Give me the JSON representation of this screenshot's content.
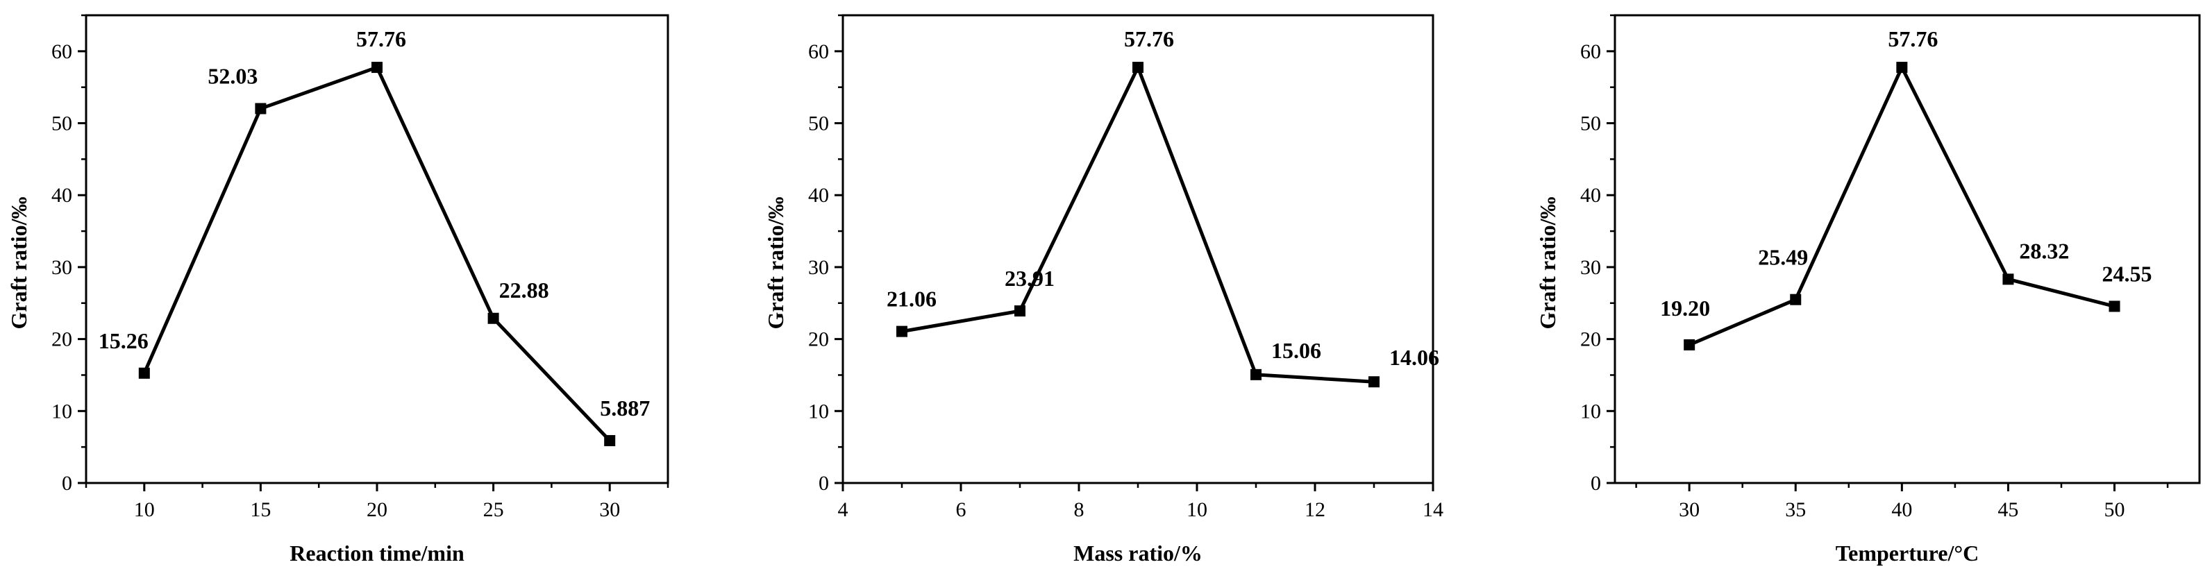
{
  "chart_data": [
    {
      "type": "line",
      "xlabel": "Reaction time/min",
      "ylabel": "Graft ratio/‰",
      "xlim": [
        7.5,
        32.5
      ],
      "ylim": [
        0,
        65
      ],
      "xticks": [
        10,
        15,
        20,
        25,
        30
      ],
      "yticks": [
        0,
        10,
        20,
        30,
        40,
        50,
        60
      ],
      "x": [
        10,
        15,
        20,
        25,
        30
      ],
      "series": [
        {
          "values": [
            15.26,
            52.03,
            57.76,
            22.88,
            5.887
          ]
        }
      ],
      "data_labels": [
        "15.26",
        "52.03",
        "57.76",
        "22.88",
        "5.887"
      ]
    },
    {
      "type": "line",
      "xlabel": "Mass ratio/%",
      "ylabel": "Graft ratio/‰",
      "xlim": [
        4,
        14
      ],
      "ylim": [
        0,
        65
      ],
      "xticks": [
        4,
        6,
        8,
        10,
        12,
        14
      ],
      "yticks": [
        0,
        10,
        20,
        30,
        40,
        50,
        60
      ],
      "x": [
        5,
        7,
        9,
        11,
        13
      ],
      "series": [
        {
          "values": [
            21.06,
            23.91,
            57.76,
            15.06,
            14.06
          ]
        }
      ],
      "data_labels": [
        "21.06",
        "23.91",
        "57.76",
        "15.06",
        "14.06"
      ]
    },
    {
      "type": "line",
      "xlabel": "Temperture/°C",
      "ylabel": "Graft ratio/‰",
      "xlim": [
        26.5,
        54
      ],
      "ylim": [
        0,
        65
      ],
      "xticks": [
        30,
        35,
        40,
        45,
        50
      ],
      "yticks": [
        0,
        10,
        20,
        30,
        40,
        50,
        60
      ],
      "x": [
        30,
        35,
        40,
        45,
        50
      ],
      "series": [
        {
          "values": [
            19.2,
            25.49,
            57.76,
            28.32,
            24.55
          ]
        }
      ],
      "data_labels": [
        "19.20",
        "25.49",
        "57.76",
        "28.32",
        "24.55"
      ]
    }
  ]
}
